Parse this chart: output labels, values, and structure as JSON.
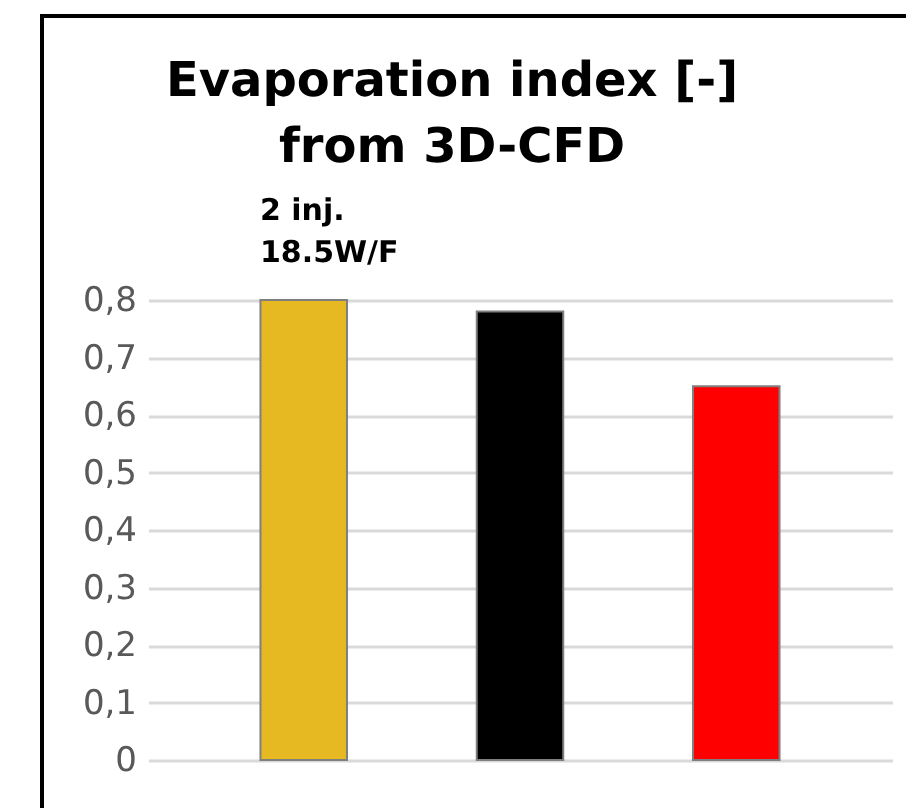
{
  "chart_data": {
    "type": "bar",
    "title": "Evaporation index [-] from 3D-CFD",
    "categories": [
      null,
      null,
      null
    ],
    "values": [
      0.8,
      0.78,
      0.65
    ],
    "colors": [
      "#e6b822",
      "#000000",
      "#ff0000"
    ],
    "ylim": [
      0,
      0.8
    ],
    "yticks": [
      0,
      {
        "value": 0.1,
        "label": "0,1"
      },
      {
        "value": 0.2,
        "label": "0,2"
      },
      {
        "value": 0.3,
        "label": "0,3"
      },
      {
        "value": 0.4,
        "label": "0,4"
      },
      {
        "value": 0.5,
        "label": "0,5"
      },
      {
        "value": 0.6,
        "label": "0,6"
      },
      {
        "value": 0.7,
        "label": "0,7"
      },
      {
        "value": 0.8,
        "label": "0,8"
      }
    ],
    "grid": "y",
    "annotations": [
      "2 inj. 18.5W/F"
    ]
  }
}
